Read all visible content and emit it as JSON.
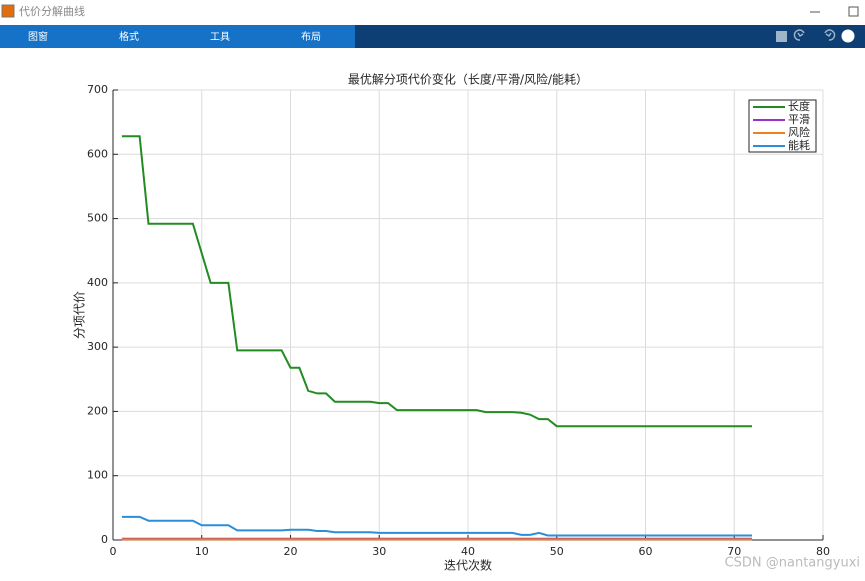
{
  "window": {
    "title": "代价分解曲线",
    "tabs": [
      "图窗",
      "格式",
      "工具",
      "布局"
    ]
  },
  "watermark": "CSDN @nantangyuxi",
  "chart_data": {
    "type": "line",
    "title": "最优解分项代价变化（长度/平滑/风险/能耗）",
    "xlabel": "迭代次数",
    "ylabel": "分项代价",
    "x": [
      1,
      2,
      3,
      4,
      5,
      6,
      7,
      8,
      9,
      10,
      11,
      12,
      13,
      14,
      15,
      16,
      17,
      18,
      19,
      20,
      21,
      22,
      23,
      24,
      25,
      26,
      27,
      28,
      29,
      30,
      31,
      32,
      33,
      34,
      35,
      36,
      37,
      38,
      39,
      40,
      41,
      42,
      43,
      44,
      45,
      46,
      47,
      48,
      49,
      50,
      51,
      52,
      53,
      54,
      55,
      56,
      57,
      58,
      59,
      60,
      61,
      62,
      63,
      64,
      65,
      66,
      67,
      68,
      69,
      70,
      71,
      72
    ],
    "series": [
      {
        "name": "长度",
        "color": "#228b22",
        "values": [
          628,
          628,
          628,
          492,
          492,
          492,
          492,
          492,
          492,
          446,
          400,
          400,
          400,
          295,
          295,
          295,
          295,
          295,
          295,
          268,
          268,
          232,
          228,
          228,
          215,
          215,
          215,
          215,
          215,
          213,
          213,
          202,
          202,
          202,
          202,
          202,
          202,
          202,
          202,
          202,
          202,
          199,
          199,
          199,
          199,
          198,
          195,
          188,
          188,
          177,
          177,
          177,
          177,
          177,
          177,
          177,
          177,
          177,
          177,
          177,
          177,
          177,
          177,
          177,
          177,
          177,
          177,
          177,
          177,
          177,
          177,
          177
        ]
      },
      {
        "name": "平滑",
        "color": "#9932cc",
        "values": [
          2,
          2,
          2,
          2,
          2,
          2,
          2,
          2,
          2,
          2,
          2,
          2,
          2,
          2,
          2,
          2,
          2,
          2,
          2,
          2,
          2,
          2,
          2,
          2,
          2,
          2,
          2,
          2,
          2,
          2,
          2,
          2,
          2,
          2,
          2,
          2,
          2,
          2,
          2,
          2,
          2,
          2,
          2,
          2,
          2,
          2,
          2,
          2,
          2,
          2,
          2,
          2,
          2,
          2,
          2,
          2,
          2,
          2,
          2,
          2,
          2,
          2,
          2,
          2,
          2,
          2,
          2,
          2,
          2,
          2,
          2,
          2
        ]
      },
      {
        "name": "风险",
        "color": "#f07f1e",
        "values": [
          1,
          1,
          1,
          1,
          1,
          1,
          1,
          1,
          1,
          1,
          1,
          1,
          1,
          1,
          1,
          1,
          1,
          1,
          1,
          1,
          1,
          1,
          1,
          1,
          1,
          1,
          1,
          1,
          1,
          1,
          1,
          1,
          1,
          1,
          1,
          1,
          1,
          1,
          1,
          1,
          1,
          1,
          1,
          1,
          1,
          1,
          1,
          1,
          1,
          1,
          1,
          1,
          1,
          1,
          1,
          1,
          1,
          1,
          1,
          1,
          1,
          1,
          1,
          1,
          1,
          1,
          1,
          1,
          1,
          1,
          1,
          1
        ]
      },
      {
        "name": "能耗",
        "color": "#2b8ed8",
        "values": [
          36,
          36,
          36,
          30,
          30,
          30,
          30,
          30,
          30,
          23,
          23,
          23,
          23,
          15,
          15,
          15,
          15,
          15,
          15,
          16,
          16,
          16,
          14,
          14,
          12,
          12,
          12,
          12,
          12,
          11,
          11,
          11,
          11,
          11,
          11,
          11,
          11,
          11,
          11,
          11,
          11,
          11,
          11,
          11,
          11,
          8,
          8,
          11,
          7,
          7,
          7,
          7,
          7,
          7,
          7,
          7,
          7,
          7,
          7,
          7,
          7,
          7,
          7,
          7,
          7,
          7,
          7,
          7,
          7,
          7,
          7,
          7
        ]
      }
    ],
    "xlim": [
      0,
      80
    ],
    "xticks": [
      0,
      10,
      20,
      30,
      40,
      50,
      60,
      70,
      80
    ],
    "ylim": [
      0,
      700
    ],
    "yticks": [
      0,
      100,
      200,
      300,
      400,
      500,
      600,
      700
    ],
    "grid": true,
    "legend": "upper-right"
  }
}
